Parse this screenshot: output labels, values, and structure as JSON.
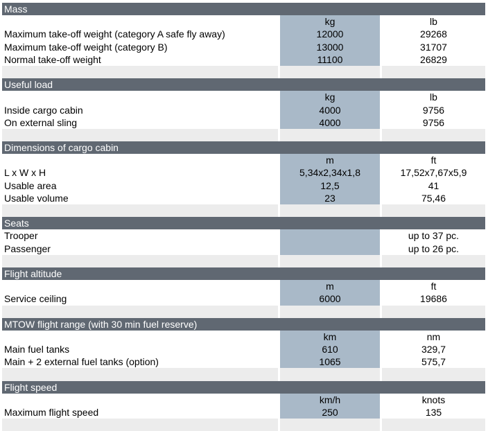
{
  "sections": [
    {
      "title": "Mass",
      "unit1": "kg",
      "unit2": "lb",
      "rows": [
        {
          "label": "Maximum take-off weight (category A safe fly away)",
          "v1": "12000",
          "v2": "29268"
        },
        {
          "label": "Maximum take-off weight (category B)",
          "v1": "13000",
          "v2": "31707"
        },
        {
          "label": "Normal take-off weight",
          "v1": "11100",
          "v2": "26829"
        }
      ]
    },
    {
      "title": "Useful load",
      "unit1": "kg",
      "unit2": "lb",
      "rows": [
        {
          "label": "Inside cargo cabin",
          "v1": "4000",
          "v2": "9756"
        },
        {
          "label": "On external sling",
          "v1": "4000",
          "v2": "9756"
        }
      ]
    },
    {
      "title": "Dimensions of cargo cabin",
      "unit1": "m",
      "unit2": "ft",
      "rows": [
        {
          "label": "L x W x H",
          "v1": "5,34x2,34x1,8",
          "v2": "17,52x7,67x5,9"
        },
        {
          "label": "Usable area",
          "v1": "12,5",
          "v2": "41"
        },
        {
          "label": "Usable volume",
          "v1": "23",
          "v2": "75,46"
        }
      ]
    },
    {
      "title": "Seats",
      "rows": [
        {
          "label": "Trooper",
          "v1": "",
          "v2": "up to 37 pc."
        },
        {
          "label": "Passenger",
          "v1": "",
          "v2": "up to 26 pc."
        }
      ]
    },
    {
      "title": "Flight altitude",
      "unit1": "m",
      "unit2": "ft",
      "rows": [
        {
          "label": "Service ceiling",
          "v1": "6000",
          "v2": "19686"
        }
      ]
    },
    {
      "title": "MTOW flight range (with 30 min fuel reserve)",
      "unit1": "km",
      "unit2": "nm",
      "rows": [
        {
          "label": "Main fuel tanks",
          "v1": "610",
          "v2": "329,7"
        },
        {
          "label": "Main + 2 external fuel tanks (option)",
          "v1": "1065",
          "v2": "575,7"
        }
      ]
    },
    {
      "title": "Flight speed",
      "unit1": "km/h",
      "unit2": "knots",
      "rows": [
        {
          "label": "Maximum flight speed",
          "v1": "250",
          "v2": "135"
        }
      ]
    }
  ]
}
